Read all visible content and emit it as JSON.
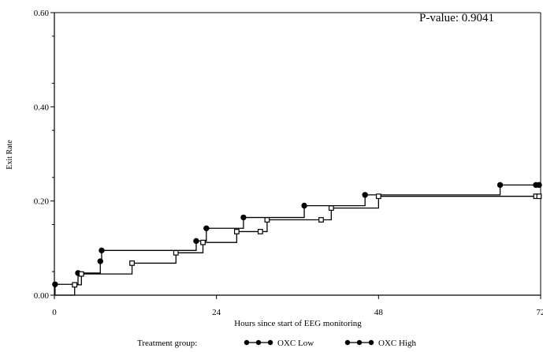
{
  "chart_data": {
    "type": "line",
    "step": true,
    "title": "",
    "annotation": "P-value: 0.9041",
    "xlabel": "Hours since start of EEG monitoring",
    "ylabel": "Exit Rate",
    "xlim": [
      0,
      72
    ],
    "ylim": [
      0,
      0.6
    ],
    "x_ticks": [
      0,
      24,
      48,
      72
    ],
    "x_tick_labels": [
      "0",
      "24",
      "48",
      "72"
    ],
    "y_ticks": [
      0.0,
      0.2,
      0.4,
      0.6
    ],
    "y_tick_labels": [
      "0.00",
      "0.20",
      "0.40",
      "0.60"
    ],
    "grid": false,
    "legend_title": "Treatment group:",
    "legend_position": "bottom",
    "series": [
      {
        "name": "OXC Low",
        "marker": "filled-circle",
        "points": [
          [
            0,
            0
          ],
          [
            0.1,
            0.023
          ],
          [
            3.5,
            0.047
          ],
          [
            6.8,
            0.072
          ],
          [
            7.0,
            0.095
          ],
          [
            21.0,
            0.115
          ],
          [
            22.5,
            0.142
          ],
          [
            28.0,
            0.165
          ],
          [
            37.0,
            0.19
          ],
          [
            46.0,
            0.213
          ],
          [
            66.0,
            0.234
          ],
          [
            72,
            0.234
          ]
        ]
      },
      {
        "name": "OXC High",
        "marker": "open-square",
        "points": [
          [
            0,
            0
          ],
          [
            3.0,
            0.022
          ],
          [
            4.0,
            0.045
          ],
          [
            11.5,
            0.068
          ],
          [
            18.0,
            0.09
          ],
          [
            22.0,
            0.112
          ],
          [
            27.0,
            0.135
          ],
          [
            30.5,
            0.135
          ],
          [
            31.5,
            0.16
          ],
          [
            39.5,
            0.16
          ],
          [
            41.0,
            0.185
          ],
          [
            48.0,
            0.21
          ],
          [
            72,
            0.21
          ]
        ]
      }
    ]
  }
}
